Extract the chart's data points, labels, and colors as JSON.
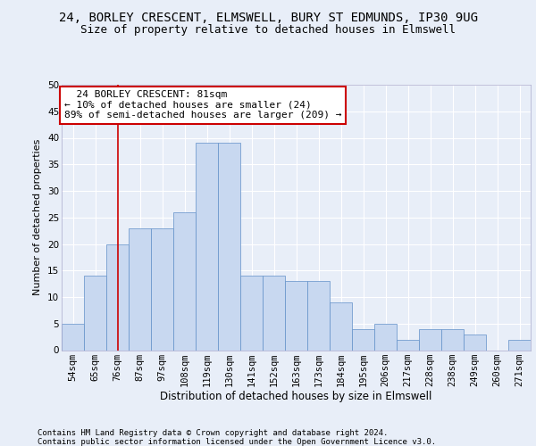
{
  "title": "24, BORLEY CRESCENT, ELMSWELL, BURY ST EDMUNDS, IP30 9UG",
  "subtitle": "Size of property relative to detached houses in Elmswell",
  "xlabel": "Distribution of detached houses by size in Elmswell",
  "ylabel": "Number of detached properties",
  "bar_color": "#c8d8f0",
  "bar_edge_color": "#6090c8",
  "categories": [
    "54sqm",
    "65sqm",
    "76sqm",
    "87sqm",
    "97sqm",
    "108sqm",
    "119sqm",
    "130sqm",
    "141sqm",
    "152sqm",
    "163sqm",
    "173sqm",
    "184sqm",
    "195sqm",
    "206sqm",
    "217sqm",
    "228sqm",
    "238sqm",
    "249sqm",
    "260sqm",
    "271sqm"
  ],
  "values": [
    5,
    14,
    20,
    23,
    23,
    26,
    39,
    39,
    14,
    14,
    13,
    13,
    9,
    4,
    5,
    2,
    4,
    4,
    3,
    0,
    2
  ],
  "ylim": [
    0,
    50
  ],
  "yticks": [
    0,
    5,
    10,
    15,
    20,
    25,
    30,
    35,
    40,
    45,
    50
  ],
  "annotation_box_text": "  24 BORLEY CRESCENT: 81sqm  \n← 10% of detached houses are smaller (24)\n89% of semi-detached houses are larger (209) →",
  "annotation_box_color": "#ffffff",
  "annotation_box_edge_color": "#cc0000",
  "vline_color": "#cc0000",
  "vline_x_index": 2.0,
  "background_color": "#e8eef8",
  "grid_color": "#ffffff",
  "footer_line1": "Contains HM Land Registry data © Crown copyright and database right 2024.",
  "footer_line2": "Contains public sector information licensed under the Open Government Licence v3.0.",
  "title_fontsize": 10,
  "subtitle_fontsize": 9,
  "xlabel_fontsize": 8.5,
  "ylabel_fontsize": 8,
  "tick_fontsize": 7.5,
  "annotation_fontsize": 8,
  "footer_fontsize": 6.5
}
